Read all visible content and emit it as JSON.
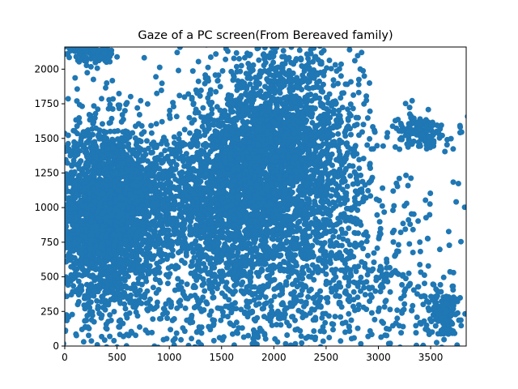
{
  "chart_data": {
    "type": "scatter",
    "title": "Gaze of a PC screen(From Bereaved family)",
    "xlabel": "",
    "ylabel": "",
    "xlim": [
      0,
      3840
    ],
    "ylim": [
      0,
      2160
    ],
    "xticks": [
      0,
      500,
      1000,
      1500,
      2000,
      2500,
      3000,
      3500
    ],
    "yticks": [
      0,
      250,
      500,
      750,
      1000,
      1250,
      1500,
      1750,
      2000
    ],
    "grid": false,
    "legend": "none",
    "color": "#1f77b4",
    "clusters": [
      {
        "cx": 380,
        "cy": 950,
        "sx": 230,
        "sy": 330,
        "n": 2200
      },
      {
        "cx": 2050,
        "cy": 1350,
        "sx": 380,
        "sy": 400,
        "n": 2600
      },
      {
        "cx": 1600,
        "cy": 1100,
        "sx": 250,
        "sy": 300,
        "n": 900
      },
      {
        "cx": 1000,
        "cy": 1000,
        "sx": 300,
        "sy": 250,
        "n": 500
      },
      {
        "cx": 3400,
        "cy": 1550,
        "sx": 120,
        "sy": 60,
        "n": 150
      },
      {
        "cx": 3620,
        "cy": 250,
        "sx": 80,
        "sy": 100,
        "n": 150
      },
      {
        "cx": 250,
        "cy": 2110,
        "sx": 130,
        "sy": 40,
        "n": 120
      },
      {
        "cx": 1500,
        "cy": 700,
        "sx": 900,
        "sy": 550,
        "n": 900
      },
      {
        "cx": 2800,
        "cy": 550,
        "sx": 500,
        "sy": 350,
        "n": 300
      },
      {
        "cx": 1800,
        "cy": 300,
        "sx": 800,
        "sy": 250,
        "n": 300
      }
    ]
  }
}
